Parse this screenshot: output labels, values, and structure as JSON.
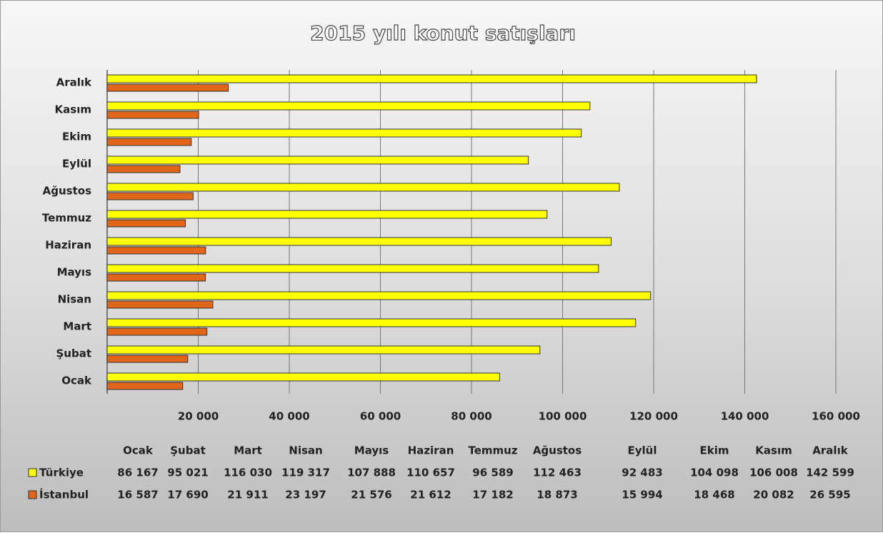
{
  "chart_data": {
    "type": "bar",
    "orientation": "horizontal",
    "title": "2015 yılı konut satışları",
    "categories": [
      "Ocak",
      "Şubat",
      "Mart",
      "Nisan",
      "Mayıs",
      "Haziran",
      "Temmuz",
      "Ağustos",
      "Eylül",
      "Ekim",
      "Kasım",
      "Aralık"
    ],
    "series": [
      {
        "name": "Türkiye",
        "color": "#ffff00",
        "values": [
          86167,
          95021,
          116030,
          119317,
          107888,
          110657,
          96589,
          112463,
          92483,
          104098,
          106008,
          142599
        ],
        "value_labels": [
          "86 167",
          "95 021",
          "116 030",
          "119 317",
          "107 888",
          "110 657",
          "96 589",
          "112 463",
          "92 483",
          "104 098",
          "106 008",
          "142 599"
        ]
      },
      {
        "name": "İstanbul",
        "color": "#e2661a",
        "values": [
          16587,
          17690,
          21911,
          23197,
          21576,
          21612,
          17182,
          18873,
          15994,
          18468,
          20082,
          26595
        ],
        "value_labels": [
          "16 587",
          "17 690",
          "21 911",
          "23 197",
          "21 576",
          "21 612",
          "17 182",
          "18 873",
          "15 994",
          "18 468",
          "20 082",
          "26 595"
        ]
      }
    ],
    "xlim": [
      0,
      160000
    ],
    "xticks": [
      {
        "value": 20000,
        "label": "20 000"
      },
      {
        "value": 40000,
        "label": "40 000"
      },
      {
        "value": 60000,
        "label": "60 000"
      },
      {
        "value": 80000,
        "label": "80 000"
      },
      {
        "value": 100000,
        "label": "100 000"
      },
      {
        "value": 120000,
        "label": "120 000"
      },
      {
        "value": 140000,
        "label": "140 000"
      },
      {
        "value": 160000,
        "label": "160 000"
      }
    ],
    "grid": true,
    "data_table": true
  }
}
